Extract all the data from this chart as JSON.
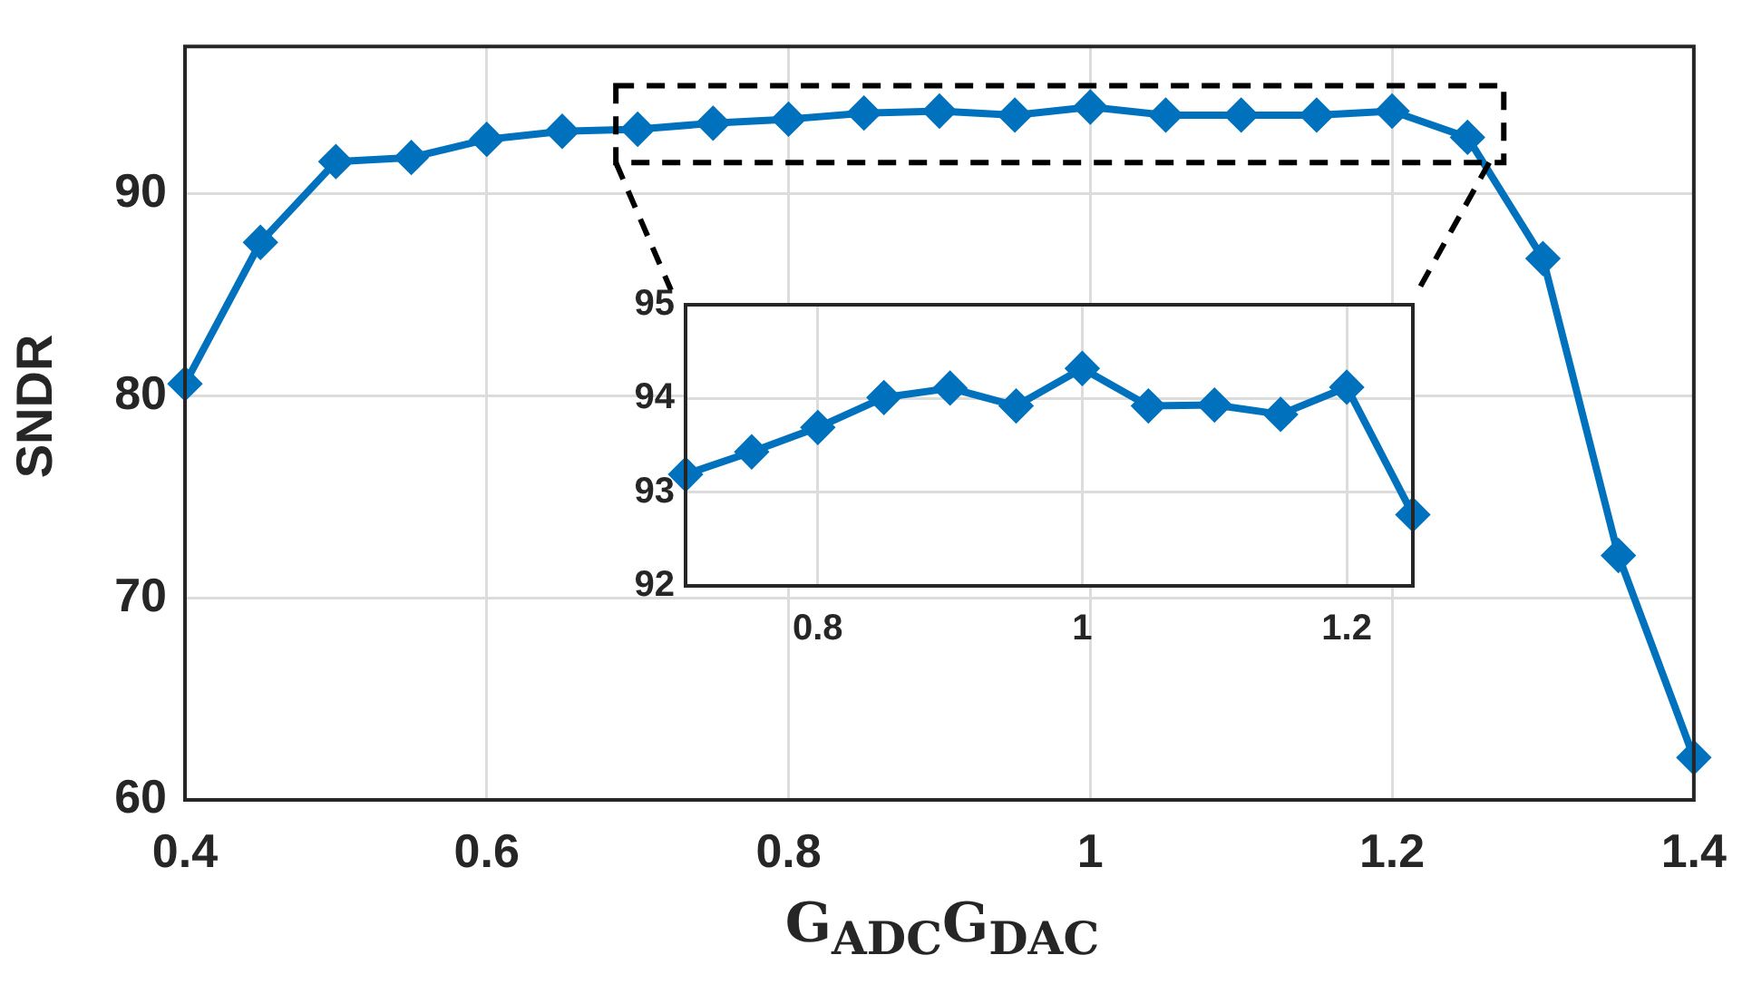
{
  "chart_data": [
    {
      "type": "line",
      "ylabel": "SNDR",
      "xlabel": "G$_{ADC}$G$_{DAC}$",
      "marker": "diamond",
      "grid": true,
      "x": [
        0.4,
        0.45,
        0.5,
        0.55,
        0.6,
        0.65,
        0.7,
        0.75,
        0.8,
        0.85,
        0.9,
        0.95,
        1.0,
        1.05,
        1.1,
        1.15,
        1.2,
        1.25,
        1.3,
        1.35,
        1.4
      ],
      "series": [
        {
          "color": "#0072bd",
          "values": [
            80.6,
            87.6,
            91.6,
            91.8,
            92.7,
            93.1,
            93.2,
            93.5,
            93.7,
            94.0,
            94.1,
            93.9,
            94.3,
            93.9,
            93.9,
            93.9,
            94.1,
            92.8,
            86.8,
            72.1,
            62.1
          ]
        }
      ],
      "xlim": [
        0.4,
        1.4
      ],
      "ylim": [
        60,
        97.3
      ],
      "xticks": [
        0.4,
        0.6,
        0.8,
        1,
        1.2,
        1.4
      ],
      "yticks": [
        60,
        70,
        80,
        90
      ]
    },
    {
      "type": "line",
      "marker": "diamond",
      "grid": true,
      "x": [
        0.7,
        0.75,
        0.8,
        0.85,
        0.9,
        0.95,
        1.0,
        1.05,
        1.1,
        1.15,
        1.2,
        1.25
      ],
      "series": [
        {
          "color": "#0072bd",
          "values": [
            93.19,
            93.43,
            93.69,
            94.01,
            94.11,
            93.92,
            94.32,
            93.92,
            93.93,
            93.83,
            94.12,
            92.76
          ]
        }
      ],
      "xlim": [
        0.7,
        1.25
      ],
      "ylim": [
        92,
        95
      ],
      "xticks": [
        0.8,
        1,
        1.2
      ],
      "yticks": [
        92,
        93,
        94,
        95
      ]
    }
  ]
}
